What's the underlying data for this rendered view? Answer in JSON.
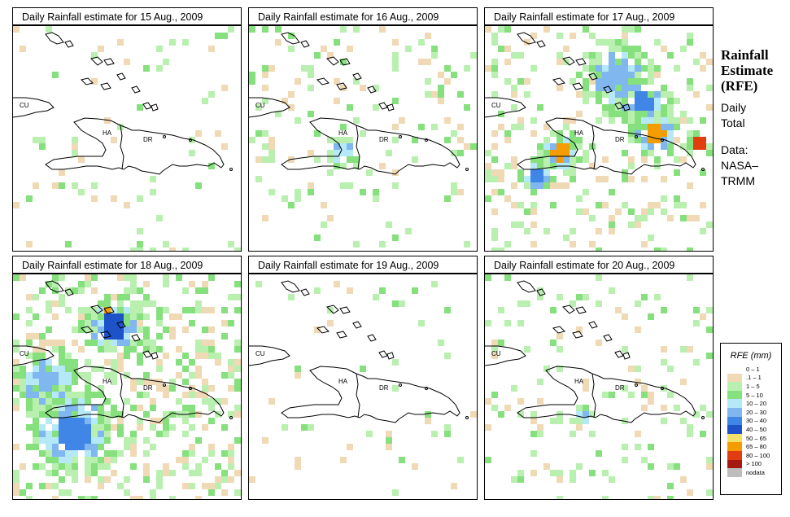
{
  "panels": [
    {
      "title": "Daily Rainfall estimate for  15 Aug., 2009",
      "labels": {
        "cu": "CU",
        "ha": "HA",
        "dr": "DR"
      }
    },
    {
      "title": "Daily Rainfall estimate for  16 Aug., 2009",
      "labels": {
        "cu": "CU",
        "ha": "HA",
        "dr": "DR"
      }
    },
    {
      "title": "Daily Rainfall estimate for  17 Aug., 2009",
      "labels": {
        "cu": "CU",
        "ha": "HA",
        "dr": "DR"
      }
    },
    {
      "title": "Daily Rainfall estimate for  18 Aug., 2009",
      "labels": {
        "cu": "CU",
        "ha": "HA",
        "dr": "DR"
      }
    },
    {
      "title": "Daily Rainfall estimate for  19 Aug., 2009",
      "labels": {
        "cu": "CU",
        "ha": "HA",
        "dr": "DR"
      }
    },
    {
      "title": "Daily Rainfall estimate for  20 Aug., 2009",
      "labels": {
        "cu": "CU",
        "ha": "HA",
        "dr": "DR"
      }
    }
  ],
  "sidebar": {
    "title_line1": "Rainfall",
    "title_line2": "Estimate",
    "title_line3": "(RFE)",
    "daily_line1": "Daily",
    "daily_line2": "Total",
    "data_line1": "Data:",
    "data_line2": "NASA–",
    "data_line3": "TRMM"
  },
  "legend": {
    "title": "RFE (mm)",
    "items": [
      {
        "label": "0 – 1",
        "color": "#ffffff"
      },
      {
        "label": ".1 – 1",
        "color": "#f0d9b5"
      },
      {
        "label": "1 – 5",
        "color": "#b9f0b0"
      },
      {
        "label": "5 – 10",
        "color": "#86e07e"
      },
      {
        "label": "10 – 20",
        "color": "#b6e9f7"
      },
      {
        "label": "20 – 30",
        "color": "#7fb7ee"
      },
      {
        "label": "30 – 40",
        "color": "#3f86e6"
      },
      {
        "label": "40 – 50",
        "color": "#1d52c9"
      },
      {
        "label": "50 – 65",
        "color": "#f5e16a"
      },
      {
        "label": "65 – 80",
        "color": "#f59c00"
      },
      {
        "label": "80 – 100",
        "color": "#e23d10"
      },
      {
        "label": "> 100",
        "color": "#a51a10"
      },
      {
        "label": "nodata",
        "color": "#bdbdbd"
      }
    ]
  }
}
